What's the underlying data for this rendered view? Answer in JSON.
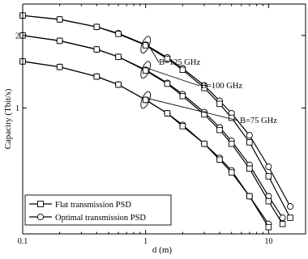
{
  "chart_data": {
    "type": "line",
    "xlabel": "d (m)",
    "ylabel": "Capacity (Tbit/s)",
    "x_scale": "log",
    "y_scale": "log",
    "xlim": [
      0.1,
      20
    ],
    "ylim": [
      0.3,
      2.7
    ],
    "x_ticks": [
      {
        "value": 0.1,
        "label": "0.1"
      },
      {
        "value": 1,
        "label": "1"
      },
      {
        "value": 10,
        "label": "10"
      }
    ],
    "y_ticks": [
      {
        "value": 1,
        "label": "1"
      },
      {
        "value": 2,
        "label": "2"
      }
    ],
    "grid": false,
    "legend_position": "bottom-left",
    "legend": [
      {
        "label": "Flat transmission PSD",
        "marker": "square"
      },
      {
        "label": "Optimal transmission PSD",
        "marker": "circle"
      }
    ],
    "annotations": [
      {
        "text": "B=125 GHz",
        "series_group": "125"
      },
      {
        "text": "B=100 GHz",
        "series_group": "100"
      },
      {
        "text": "B=75 GHz",
        "series_group": "75"
      }
    ],
    "series": [
      {
        "group": "125",
        "marker": "circle",
        "x": [
          0.1,
          0.2,
          0.4,
          0.6,
          1,
          1.5,
          2,
          3,
          4,
          5,
          7,
          10,
          15
        ],
        "y": [
          2.42,
          2.33,
          2.17,
          2.04,
          1.83,
          1.62,
          1.46,
          1.24,
          1.07,
          0.95,
          0.77,
          0.57,
          0.39
        ]
      },
      {
        "group": "125",
        "marker": "square",
        "x": [
          0.1,
          0.2,
          0.4,
          0.6,
          1,
          1.5,
          2,
          3,
          4,
          5,
          7,
          10,
          15
        ],
        "y": [
          2.42,
          2.33,
          2.17,
          2.03,
          1.82,
          1.6,
          1.44,
          1.21,
          1.04,
          0.91,
          0.72,
          0.52,
          0.35
        ]
      },
      {
        "group": "100",
        "marker": "circle",
        "x": [
          0.1,
          0.2,
          0.4,
          0.6,
          1,
          1.5,
          2,
          3,
          4,
          5,
          7,
          10,
          13
        ],
        "y": [
          2.0,
          1.9,
          1.75,
          1.63,
          1.44,
          1.27,
          1.14,
          0.96,
          0.83,
          0.73,
          0.58,
          0.43,
          0.35
        ]
      },
      {
        "group": "100",
        "marker": "square",
        "x": [
          0.1,
          0.2,
          0.4,
          0.6,
          1,
          1.5,
          2,
          3,
          4,
          5,
          7,
          10,
          13
        ],
        "y": [
          2.0,
          1.9,
          1.75,
          1.63,
          1.43,
          1.26,
          1.12,
          0.94,
          0.81,
          0.71,
          0.56,
          0.41,
          0.33
        ]
      },
      {
        "group": "75",
        "marker": "circle",
        "x": [
          0.1,
          0.2,
          0.4,
          0.6,
          1,
          1.5,
          2,
          3,
          4,
          5,
          7,
          10
        ],
        "y": [
          1.56,
          1.48,
          1.35,
          1.25,
          1.08,
          0.95,
          0.85,
          0.71,
          0.62,
          0.55,
          0.43,
          0.33
        ]
      },
      {
        "group": "75",
        "marker": "square",
        "x": [
          0.1,
          0.2,
          0.4,
          0.6,
          1,
          1.5,
          2,
          3,
          4,
          5,
          7,
          10
        ],
        "y": [
          1.56,
          1.48,
          1.35,
          1.25,
          1.08,
          0.95,
          0.84,
          0.71,
          0.61,
          0.54,
          0.43,
          0.32
        ]
      }
    ]
  }
}
